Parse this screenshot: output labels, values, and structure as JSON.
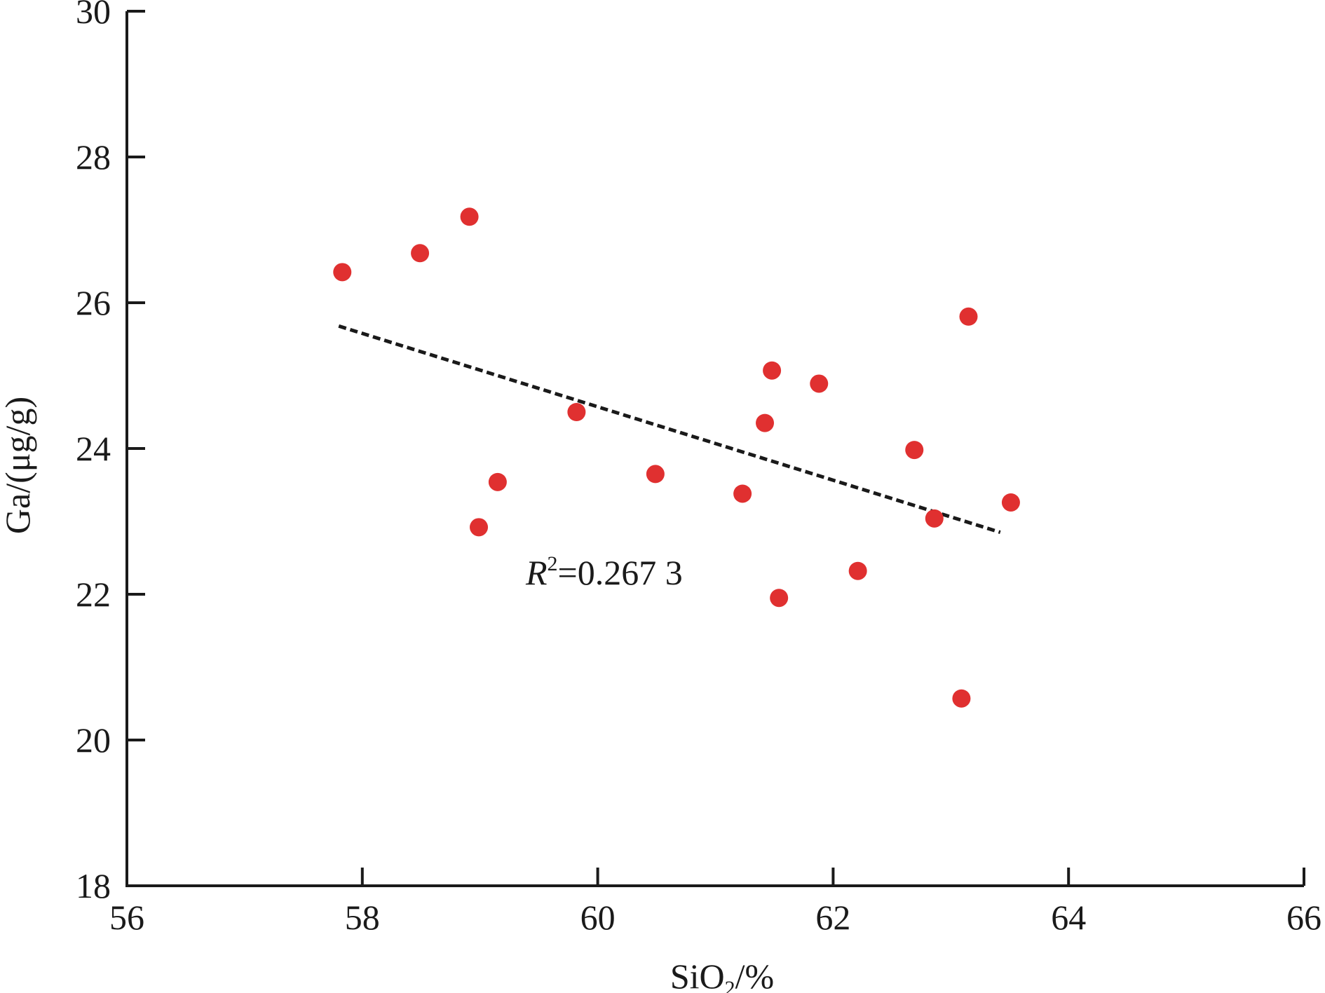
{
  "chart_data": {
    "type": "scatter",
    "xlabel": {
      "main": "SiO",
      "sub": "2",
      "unit": "/%"
    },
    "ylabel": "Ga/(μg/g)",
    "xlim": [
      56,
      66
    ],
    "ylim": [
      18,
      30
    ],
    "xticks": [
      56,
      58,
      60,
      62,
      64,
      66
    ],
    "yticks": [
      18,
      20,
      22,
      24,
      26,
      28,
      30
    ],
    "grid": false,
    "point_color": "#e03030",
    "trend_color": "#1a1a1a",
    "points": [
      {
        "x": 57.83,
        "y": 26.42
      },
      {
        "x": 58.49,
        "y": 26.68
      },
      {
        "x": 58.91,
        "y": 27.18
      },
      {
        "x": 58.99,
        "y": 22.92
      },
      {
        "x": 59.15,
        "y": 23.54
      },
      {
        "x": 59.82,
        "y": 24.5
      },
      {
        "x": 60.49,
        "y": 23.65
      },
      {
        "x": 61.23,
        "y": 23.38
      },
      {
        "x": 61.42,
        "y": 24.35
      },
      {
        "x": 61.48,
        "y": 25.07
      },
      {
        "x": 61.54,
        "y": 21.95
      },
      {
        "x": 61.88,
        "y": 24.89
      },
      {
        "x": 62.21,
        "y": 22.32
      },
      {
        "x": 62.69,
        "y": 23.98
      },
      {
        "x": 62.86,
        "y": 23.04
      },
      {
        "x": 63.09,
        "y": 20.57
      },
      {
        "x": 63.15,
        "y": 25.81
      },
      {
        "x": 63.51,
        "y": 23.26
      }
    ],
    "trendline": {
      "x": [
        57.8,
        63.42
      ],
      "y": [
        25.68,
        22.85
      ],
      "style": "dashed"
    },
    "annotation": {
      "var": "R",
      "sup": "2",
      "value": "=0.267 3"
    }
  }
}
